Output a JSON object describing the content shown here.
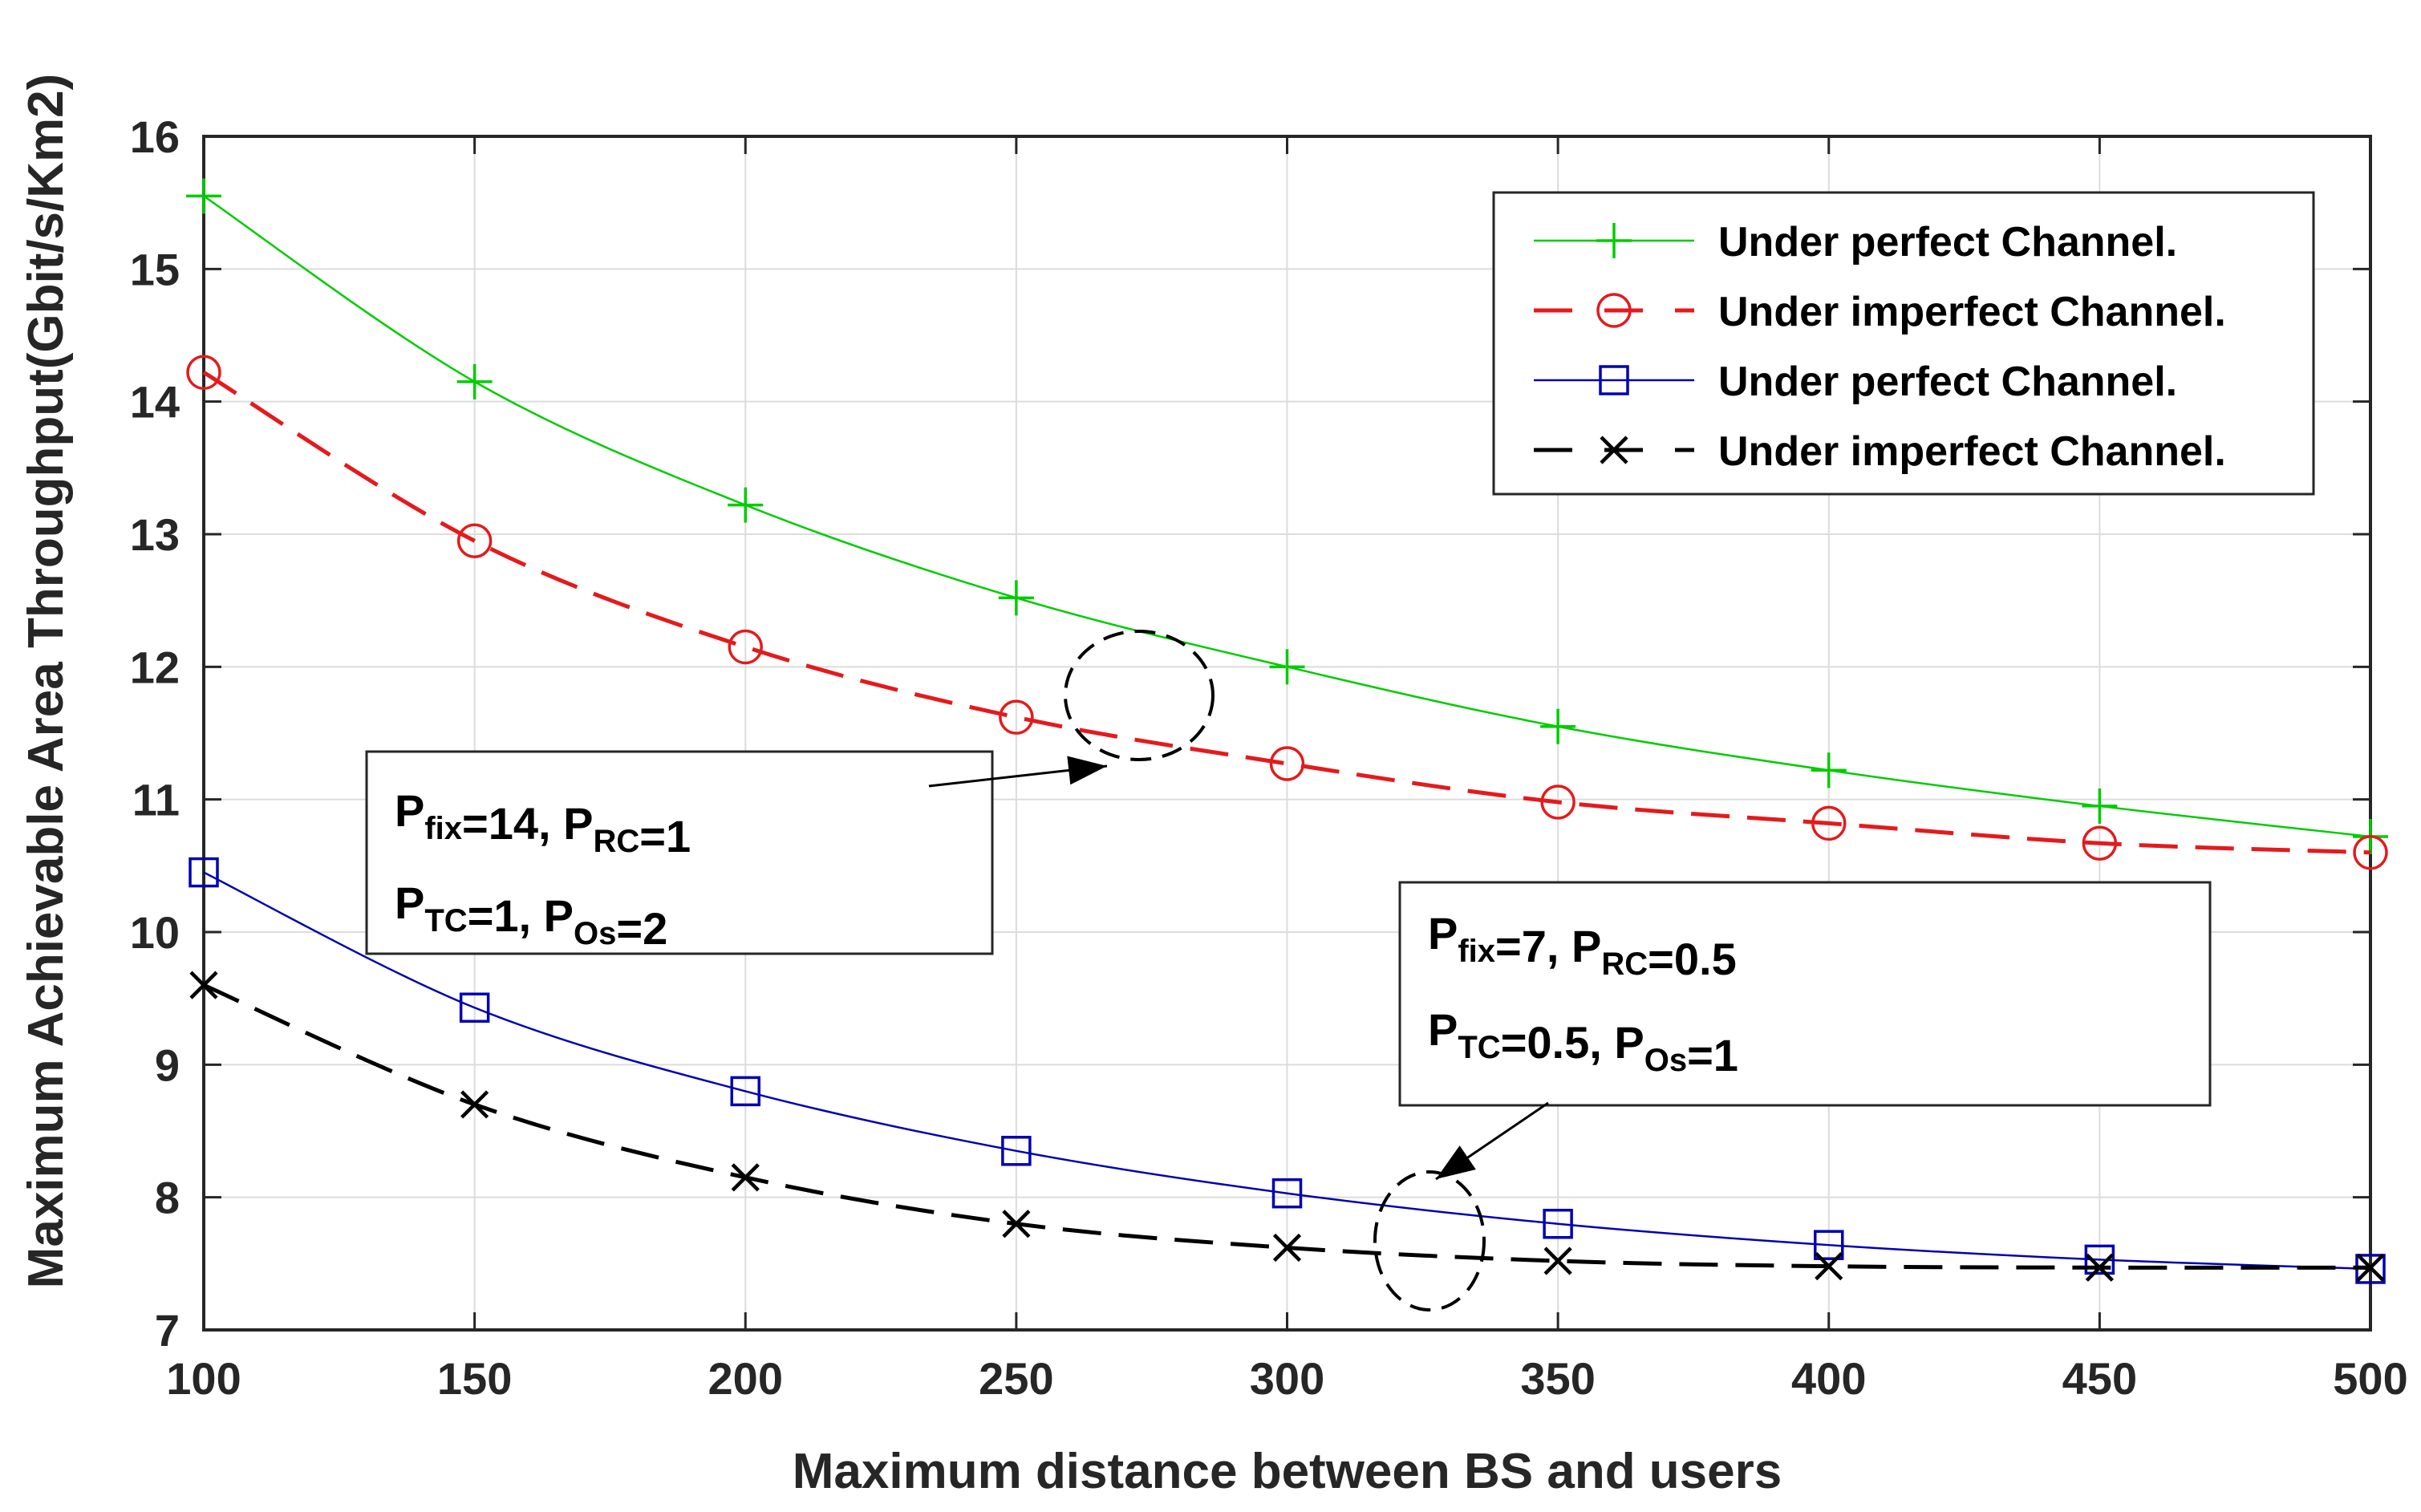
{
  "chart_data": {
    "type": "line",
    "title": "",
    "xlabel": "Maximum distance between BS and users",
    "ylabel": "Maximum Achievable Area Throughput(Gbit/s/Km2)",
    "xlim": [
      100,
      500
    ],
    "ylim": [
      7,
      16
    ],
    "xticks": [
      100,
      150,
      200,
      250,
      300,
      350,
      400,
      450,
      500
    ],
    "yticks": [
      7,
      8,
      9,
      10,
      11,
      12,
      13,
      14,
      15,
      16
    ],
    "grid": true,
    "legend_position": "top-right",
    "x": [
      100,
      150,
      200,
      250,
      300,
      350,
      400,
      450,
      500
    ],
    "series": [
      {
        "name": "Under perfect Channel.",
        "color": "#00cc00",
        "line_style": "solid",
        "marker": "plus",
        "values": [
          15.55,
          14.15,
          13.22,
          12.52,
          12.0,
          11.55,
          11.22,
          10.95,
          10.72
        ]
      },
      {
        "name": "Under imperfect Channel.",
        "color": "#e41a1c",
        "line_style": "dashed",
        "marker": "circle",
        "values": [
          14.22,
          12.95,
          12.15,
          11.62,
          11.27,
          10.98,
          10.82,
          10.67,
          10.6
        ]
      },
      {
        "name": "Under perfect Channel.",
        "color": "#0000b3",
        "line_style": "solid",
        "marker": "square",
        "values": [
          10.45,
          9.43,
          8.8,
          8.35,
          8.03,
          7.8,
          7.64,
          7.53,
          7.46
        ]
      },
      {
        "name": "Under imperfect Channel.",
        "color": "#000000",
        "line_style": "dashed",
        "marker": "x",
        "values": [
          9.6,
          8.7,
          8.15,
          7.8,
          7.62,
          7.52,
          7.48,
          7.47,
          7.47
        ]
      }
    ],
    "annotations": [
      {
        "id": "high-power",
        "lines": [
          [
            {
              "t": "P"
            },
            {
              "t": "fix",
              "sub": true
            },
            {
              "t": "=14, P"
            },
            {
              "t": "RC",
              "sub": true
            },
            {
              "t": "=1"
            }
          ],
          [
            {
              "t": "P"
            },
            {
              "t": "TC",
              "sub": true
            },
            {
              "t": "=1, P"
            },
            {
              "t": "Os",
              "sub": true
            },
            {
              "t": "=2"
            }
          ]
        ]
      },
      {
        "id": "low-power",
        "lines": [
          [
            {
              "t": "P"
            },
            {
              "t": "fix",
              "sub": true
            },
            {
              "t": "=7, P"
            },
            {
              "t": "RC",
              "sub": true
            },
            {
              "t": "=0.5"
            }
          ],
          [
            {
              "t": "P"
            },
            {
              "t": "TC",
              "sub": true
            },
            {
              "t": "=0.5, P"
            },
            {
              "t": "Os",
              "sub": true
            },
            {
              "t": "=1"
            }
          ]
        ]
      }
    ]
  }
}
